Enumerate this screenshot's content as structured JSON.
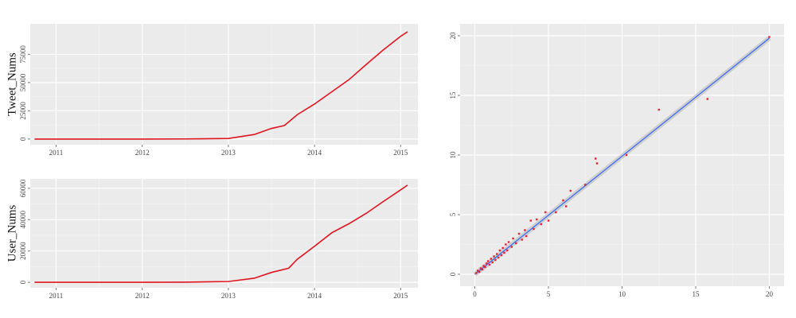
{
  "chart_data": [
    {
      "type": "line",
      "y_label": "Tweet_Nums",
      "xlim": [
        2010.7,
        2015.2
      ],
      "xticks": [
        2011,
        2012,
        2013,
        2014,
        2015
      ],
      "ylim": [
        -5000,
        102000
      ],
      "yticks": [
        0,
        25000,
        50000,
        75000
      ],
      "grid": true,
      "series": [
        {
          "color": "#e0141e",
          "x": [
            2010.75,
            2012.0,
            2012.5,
            2013.0,
            2013.3,
            2013.5,
            2013.65,
            2013.8,
            2014.0,
            2014.2,
            2014.4,
            2014.6,
            2014.8,
            2015.0,
            2015.08
          ],
          "values": [
            0,
            0,
            100,
            500,
            4000,
            9400,
            12000,
            21600,
            31000,
            41800,
            52600,
            66000,
            79000,
            91000,
            95000
          ]
        }
      ]
    },
    {
      "type": "line",
      "y_label": "User_Nums",
      "xlim": [
        2010.7,
        2015.2
      ],
      "xticks": [
        2011,
        2012,
        2013,
        2014,
        2015
      ],
      "ylim": [
        -3500,
        66000
      ],
      "yticks": [
        0,
        20000,
        40000,
        60000
      ],
      "grid": true,
      "series": [
        {
          "color": "#e0141e",
          "x": [
            2010.75,
            2012.0,
            2012.5,
            2013.0,
            2013.3,
            2013.5,
            2013.7,
            2013.8,
            2014.0,
            2014.2,
            2014.4,
            2014.6,
            2014.8,
            2015.0,
            2015.08
          ],
          "values": [
            0,
            0,
            100,
            500,
            2600,
            6300,
            9000,
            14700,
            23000,
            31600,
            37400,
            44000,
            51600,
            59000,
            62000
          ]
        }
      ]
    },
    {
      "type": "scatter",
      "xlim": [
        -1,
        21
      ],
      "xticks": [
        0,
        5,
        10,
        15,
        20
      ],
      "ylim": [
        -1,
        21
      ],
      "yticks": [
        0,
        5,
        10,
        15,
        20
      ],
      "grid": true,
      "series": [
        {
          "color": "#e8212a",
          "x": [
            0.1,
            0.2,
            0.3,
            0.4,
            0.5,
            0.6,
            0.7,
            0.8,
            0.9,
            1.0,
            1.1,
            1.2,
            1.3,
            1.4,
            1.5,
            1.6,
            1.7,
            1.8,
            1.9,
            2.0,
            2.1,
            2.2,
            2.3,
            2.5,
            2.6,
            2.8,
            3.0,
            3.2,
            3.4,
            3.5,
            3.8,
            4.0,
            4.2,
            4.5,
            4.8,
            5.0,
            5.5,
            6.0,
            6.2,
            6.5,
            7.5,
            8.2,
            8.3,
            10.3,
            12.5,
            15.8,
            20.0
          ],
          "values": [
            0.1,
            0.3,
            0.2,
            0.5,
            0.4,
            0.7,
            0.6,
            0.9,
            1.1,
            0.8,
            1.3,
            1.0,
            1.5,
            1.2,
            1.7,
            1.4,
            2.0,
            1.6,
            2.2,
            1.8,
            2.5,
            2.0,
            2.7,
            2.3,
            3.0,
            2.6,
            3.4,
            2.9,
            3.7,
            3.2,
            4.5,
            3.8,
            4.6,
            4.2,
            5.2,
            4.5,
            5.2,
            6.2,
            5.7,
            7.0,
            7.5,
            9.7,
            9.3,
            10.0,
            13.8,
            14.7,
            19.9
          ]
        }
      ],
      "trend": {
        "color": "#3366ff",
        "x": [
          0,
          20
        ],
        "values": [
          0,
          19.8
        ]
      }
    }
  ]
}
